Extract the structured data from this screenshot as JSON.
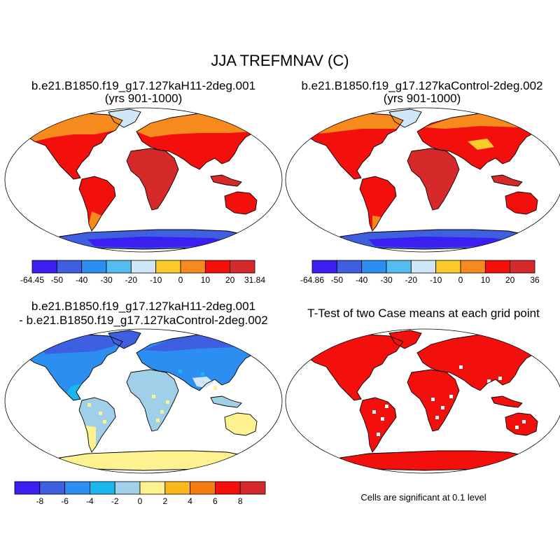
{
  "figure": {
    "title": "JJA TREFMNAV (C)"
  },
  "panels": [
    {
      "id": "case1",
      "title": "b.e21.B1850.f19_g17.127kaH11-2deg.001",
      "subtitle": "(yrs 901-1000)",
      "colorbar": {
        "colors": [
          "#3b1ef0",
          "#3d5fe0",
          "#2c8ef0",
          "#55bcf0",
          "#cfe7f6",
          "#fbcb2c",
          "#f68a1c",
          "#f30f0c",
          "#d62a2a"
        ],
        "labels": [
          "-64.45",
          "-50",
          "-40",
          "-30",
          "-20",
          "-10",
          "0",
          "10",
          "20",
          "31.84"
        ]
      }
    },
    {
      "id": "case2",
      "title": "b.e21.B1850.f19_g17.127kaControl-2deg.002",
      "subtitle": "(yrs 901-1000)",
      "colorbar": {
        "colors": [
          "#3b1ef0",
          "#3d5fe0",
          "#2c8ef0",
          "#55bcf0",
          "#cfe7f6",
          "#fbcb2c",
          "#f68a1c",
          "#f30f0c",
          "#d62a2a"
        ],
        "labels": [
          "-64.86",
          "-50",
          "-40",
          "-30",
          "-20",
          "-10",
          "0",
          "10",
          "20",
          "36"
        ]
      }
    },
    {
      "id": "difference",
      "title": "b.e21.B1850.f19_g17.127kaH11-2deg.001",
      "subtitle": "- b.e21.B1850.f19_g17.127kaControl-2deg.002",
      "colorbar": {
        "colors": [
          "#3b1ef0",
          "#3d5fe0",
          "#2c8ef0",
          "#1ab6f0",
          "#a0cfe8",
          "#fdf28f",
          "#fbb81a",
          "#f67c10",
          "#f30f0c",
          "#d62a2a"
        ],
        "labels": [
          "-8",
          "-6",
          "-4",
          "-2",
          "0",
          "2",
          "4",
          "6",
          "8"
        ]
      }
    },
    {
      "id": "ttest",
      "title": "T-Test of two Case means at each grid point",
      "note": "Cells are significant at 0.1 level"
    }
  ],
  "style": {
    "ttest_color": "#f30f0c",
    "coast_color": "#000000"
  }
}
